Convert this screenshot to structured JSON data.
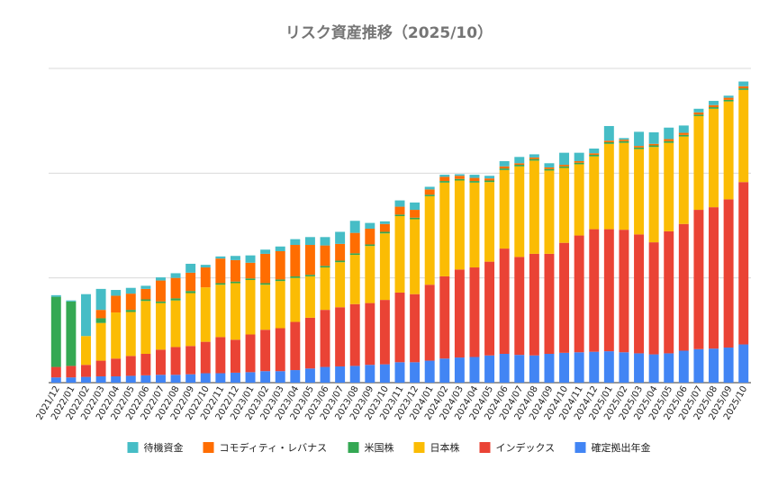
{
  "chart_data": {
    "type": "bar",
    "stacked": true,
    "title": "リスク資産推移（2025/10）",
    "xlabel": "",
    "ylabel": "",
    "ylim": [
      0,
      60
    ],
    "y_grid": [
      0,
      20,
      40,
      60
    ],
    "grid": "horizontal",
    "legend_position": "bottom",
    "categories": [
      "2021/12",
      "2022/01",
      "2022/02",
      "2022/03",
      "2022/04",
      "2022/05",
      "2022/06",
      "2022/07",
      "2022/08",
      "2022/09",
      "2022/10",
      "2022/11",
      "2022/12",
      "2023/01",
      "2023/02",
      "2023/03",
      "2023/04",
      "2023/05",
      "2023/06",
      "2023/07",
      "2023/08",
      "2023/09",
      "2023/10",
      "2023/11",
      "2023/12",
      "2024/01",
      "2024/02",
      "2024/03",
      "2024/04",
      "2024/05",
      "2024/06",
      "2024/07",
      "2024/08",
      "2024/09",
      "2024/10",
      "2024/11",
      "2024/12",
      "2025/01",
      "2025/02",
      "2025/03",
      "2025/04",
      "2025/05",
      "2025/06",
      "2025/07",
      "2025/08",
      "2025/09",
      "2025/10"
    ],
    "series": [
      {
        "name": "確定拠出年金",
        "color": "#4285f4",
        "values": [
          1.0,
          1.0,
          1.1,
          1.2,
          1.2,
          1.3,
          1.4,
          1.5,
          1.5,
          1.6,
          1.8,
          1.8,
          1.9,
          2.0,
          2.2,
          2.2,
          2.4,
          2.7,
          3.0,
          3.1,
          3.2,
          3.4,
          3.5,
          3.9,
          3.9,
          4.2,
          4.6,
          4.8,
          4.9,
          5.2,
          5.5,
          5.3,
          5.2,
          5.5,
          5.7,
          5.8,
          5.9,
          6.0,
          5.8,
          5.6,
          5.4,
          5.6,
          6.1,
          6.4,
          6.5,
          6.7,
          7.3
        ]
      },
      {
        "name": "インデックス",
        "color": "#ea4335",
        "values": [
          2.0,
          2.2,
          2.3,
          3.0,
          3.4,
          3.8,
          4.1,
          4.8,
          5.3,
          5.4,
          6.0,
          6.9,
          6.3,
          7.2,
          7.9,
          8.2,
          9.2,
          9.7,
          10.9,
          11.3,
          11.8,
          11.8,
          12.3,
          13.3,
          13.0,
          14.5,
          15.7,
          16.8,
          17.1,
          17.9,
          20.1,
          18.7,
          19.4,
          19.1,
          21.0,
          22.3,
          23.4,
          23.3,
          23.4,
          22.7,
          21.4,
          23.3,
          24.2,
          26.6,
          27.0,
          28.3,
          31.0
        ]
      },
      {
        "name": "日本株",
        "color": "#fbbc04",
        "values": [
          0,
          0,
          5.5,
          7.2,
          8.8,
          8.4,
          10.1,
          8.9,
          8.9,
          10.1,
          10.4,
          10.0,
          10.8,
          10.4,
          8.6,
          9.0,
          8.4,
          7.9,
          8.1,
          8.6,
          9.4,
          10.9,
          12.7,
          14.6,
          14.3,
          16.9,
          17.9,
          17.0,
          16.2,
          15.2,
          15.0,
          17.3,
          17.8,
          15.9,
          14.3,
          13.6,
          13.9,
          16.3,
          16.6,
          16.3,
          18.2,
          16.9,
          16.7,
          17.9,
          18.8,
          18.7,
          17.6
        ]
      },
      {
        "name": "米国株",
        "color": "#34a853",
        "values": [
          13.4,
          12.3,
          0,
          0.9,
          0,
          0.4,
          0.3,
          0.3,
          0.4,
          0.4,
          0,
          0.3,
          0.3,
          0.3,
          0.3,
          0.3,
          0.3,
          0.3,
          0.3,
          0.3,
          0.3,
          0.3,
          0.3,
          0.3,
          0.3,
          0.3,
          0.3,
          0.3,
          0.3,
          0.3,
          0.3,
          0.3,
          0.3,
          0.3,
          0.3,
          0.3,
          0.3,
          0.3,
          0.3,
          0.3,
          0.3,
          0.3,
          0.3,
          0.3,
          0.3,
          0.3,
          0.3
        ]
      },
      {
        "name": "コモディティ・レバナス",
        "color": "#ff6d01",
        "values": [
          0,
          0,
          0,
          1.6,
          3.2,
          3.1,
          2.0,
          4.0,
          3.9,
          3.5,
          3.8,
          4.7,
          4.1,
          3.0,
          5.6,
          5.4,
          6.0,
          5.7,
          3.9,
          3.2,
          3.9,
          3.0,
          1.5,
          1.5,
          1.5,
          1.0,
          0.8,
          0.6,
          0.6,
          0.4,
          0.4,
          0.3,
          0.3,
          0.3,
          0.3,
          0.3,
          0.3,
          0.3,
          0.3,
          0.3,
          0.3,
          0.4,
          0.4,
          0.4,
          0.4,
          0.4,
          0.4
        ]
      },
      {
        "name": "待機資金",
        "color": "#46bdc6",
        "values": [
          0.3,
          0.2,
          8.0,
          4.0,
          1.1,
          1.1,
          0.6,
          0.6,
          0.9,
          1.7,
          0.5,
          0.4,
          0.8,
          1.4,
          0.8,
          0.9,
          1.1,
          1.5,
          1.6,
          2.3,
          2.3,
          1.1,
          0.5,
          1.2,
          1.4,
          0.5,
          0.4,
          0.3,
          0.6,
          0.5,
          1.0,
          1.2,
          0.6,
          0.8,
          2.3,
          1.6,
          0.9,
          2.8,
          0.3,
          2.7,
          2.2,
          2.2,
          1.4,
          0.7,
          0.8,
          0.4,
          0.9
        ]
      }
    ],
    "legend_order": [
      "待機資金",
      "コモディティ・レバナス",
      "米国株",
      "日本株",
      "インデックス",
      "確定拠出年金"
    ]
  }
}
